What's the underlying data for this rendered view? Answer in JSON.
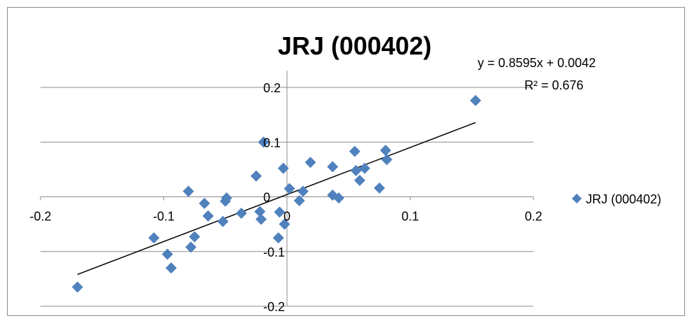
{
  "chart_data": {
    "type": "scatter",
    "title": "JRJ (000402)",
    "xlim": [
      -0.2,
      0.2
    ],
    "ylim": [
      -0.2,
      0.2
    ],
    "x_ticks": [
      "-0.2",
      "-0.1",
      "0",
      "0.1",
      "0.2"
    ],
    "y_ticks": [
      "0.2",
      "0.1",
      "0",
      "-0.1",
      "-0.2"
    ],
    "grid": "horizontal",
    "legend_position": "right",
    "series": [
      {
        "name": "JRJ (000402)",
        "color": "#4f81bd",
        "marker": "diamond",
        "points": [
          [
            -0.17,
            -0.165
          ],
          [
            -0.108,
            -0.075
          ],
          [
            -0.097,
            -0.105
          ],
          [
            -0.094,
            -0.13
          ],
          [
            -0.08,
            0.01
          ],
          [
            -0.078,
            -0.092
          ],
          [
            -0.075,
            -0.073
          ],
          [
            -0.067,
            -0.012
          ],
          [
            -0.064,
            -0.035
          ],
          [
            -0.052,
            -0.045
          ],
          [
            -0.05,
            -0.008
          ],
          [
            -0.049,
            -0.002
          ],
          [
            -0.037,
            -0.03
          ],
          [
            -0.025,
            0.038
          ],
          [
            -0.022,
            -0.027
          ],
          [
            -0.021,
            -0.041
          ],
          [
            -0.019,
            0.1
          ],
          [
            -0.007,
            -0.075
          ],
          [
            -0.006,
            -0.028
          ],
          [
            -0.003,
            0.052
          ],
          [
            -0.002,
            -0.05
          ],
          [
            0.002,
            0.015
          ],
          [
            0.01,
            -0.007
          ],
          [
            0.013,
            0.01
          ],
          [
            0.019,
            0.063
          ],
          [
            0.037,
            0.055
          ],
          [
            0.037,
            0.003
          ],
          [
            0.042,
            -0.002
          ],
          [
            0.055,
            0.083
          ],
          [
            0.056,
            0.048
          ],
          [
            0.059,
            0.03
          ],
          [
            0.063,
            0.052
          ],
          [
            0.075,
            0.016
          ],
          [
            0.08,
            0.085
          ],
          [
            0.081,
            0.068
          ],
          [
            0.153,
            0.176
          ]
        ]
      }
    ],
    "trendline": {
      "type": "linear",
      "slope": 0.8595,
      "intercept": 0.0042,
      "x_range": [
        -0.17,
        0.153
      ],
      "equation_label": "y = 0.8595x + 0.0042",
      "r2_label": "R² = 0.676"
    }
  }
}
